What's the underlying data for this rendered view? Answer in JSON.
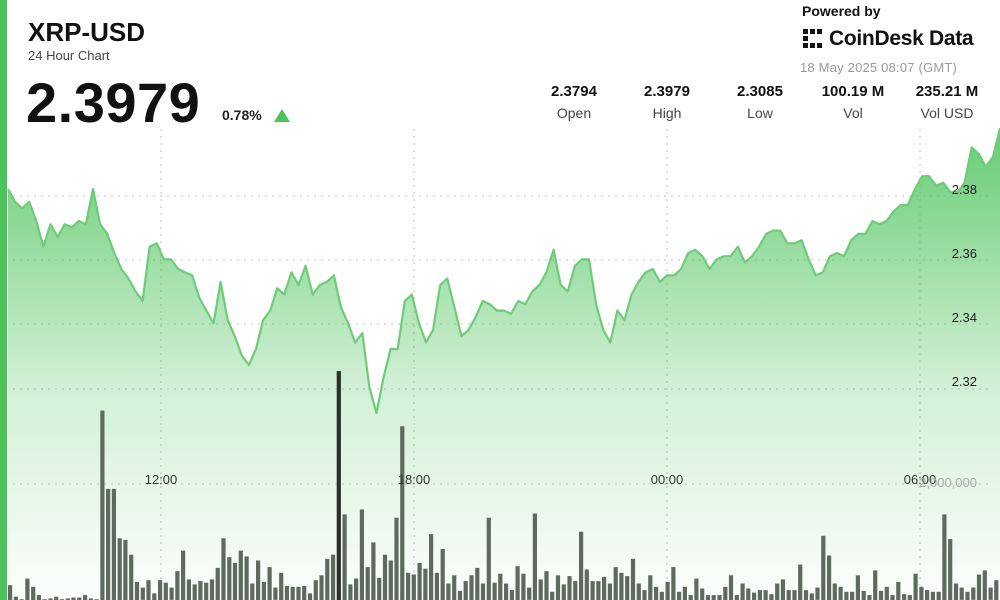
{
  "header": {
    "symbol": "XRP-USD",
    "subtitle": "24 Hour Chart",
    "price": "2.3979",
    "change": "0.78%",
    "change_direction": "up",
    "powered_by": "Powered by",
    "brand": "CoinDesk Data",
    "timestamp": "18 May 2025 08:07 (GMT)"
  },
  "stats": [
    {
      "label": "Open",
      "value": "2.3794"
    },
    {
      "label": "High",
      "value": "2.3979"
    },
    {
      "label": "Low",
      "value": "2.3085"
    },
    {
      "label": "Vol",
      "value": "100.19 M"
    },
    {
      "label": "Vol USD",
      "value": "235.21 M"
    }
  ],
  "colors": {
    "price_line": "#6dcc78",
    "area_fill": "#4cc35a",
    "volume_bar": "#5f6a5e",
    "volume_bar_highlight": "#2a2f2a",
    "up_arrow": "#4cc35a",
    "left_edge": "#4cc35a",
    "grid_dots": "#c8c8c8"
  },
  "chart_data": {
    "type": "line",
    "x_tick_labels": [
      "12:00",
      "18:00",
      "00:00",
      "06:00"
    ],
    "y_tick_labels": [
      "2.38",
      "2.36",
      "2.34",
      "2.32"
    ],
    "y_ticks": [
      2.38,
      2.36,
      2.34,
      2.32
    ],
    "ylim": [
      2.305,
      2.4
    ],
    "volume_axis_label": "2,000,000",
    "volume_max": 3000000,
    "grid": true,
    "price": [
      2.38,
      2.376,
      2.374,
      2.376,
      2.37,
      2.362,
      2.369,
      2.365,
      2.369,
      2.368,
      2.37,
      2.369,
      2.38,
      2.369,
      2.366,
      2.36,
      2.355,
      2.352,
      2.348,
      2.345,
      2.362,
      2.363,
      2.358,
      2.358,
      2.355,
      2.354,
      2.353,
      2.346,
      2.342,
      2.338,
      2.351,
      2.339,
      2.334,
      2.328,
      2.325,
      2.33,
      2.339,
      2.342,
      2.349,
      2.347,
      2.354,
      2.35,
      2.356,
      2.347,
      2.35,
      2.351,
      2.353,
      2.343,
      2.338,
      2.332,
      2.335,
      2.318,
      2.31,
      2.321,
      2.33,
      2.33,
      2.345,
      2.347,
      2.338,
      2.332,
      2.336,
      2.35,
      2.352,
      2.343,
      2.334,
      2.336,
      2.34,
      2.345,
      2.344,
      2.342,
      2.342,
      2.341,
      2.345,
      2.344,
      2.348,
      2.35,
      2.354,
      2.361,
      2.35,
      2.348,
      2.356,
      2.358,
      2.358,
      2.344,
      2.336,
      2.332,
      2.342,
      2.339,
      2.347,
      2.351,
      2.354,
      2.355,
      2.351,
      2.353,
      2.353,
      2.355,
      2.36,
      2.361,
      2.359,
      2.355,
      2.358,
      2.359,
      2.359,
      2.362,
      2.357,
      2.359,
      2.362,
      2.366,
      2.367,
      2.367,
      2.363,
      2.363,
      2.364,
      2.358,
      2.353,
      2.354,
      2.359,
      2.36,
      2.359,
      2.364,
      2.366,
      2.366,
      2.37,
      2.369,
      2.37,
      2.373,
      2.375,
      2.375,
      2.38,
      2.384,
      2.384,
      2.381,
      2.382,
      2.379,
      2.379,
      2.382,
      2.393,
      2.391,
      2.387,
      2.39,
      2.399
    ],
    "volume": [
      180000,
      40000,
      10000,
      260000,
      160000,
      60000,
      10000,
      20000,
      40000,
      10000,
      20000,
      30000,
      30000,
      60000,
      20000,
      10000,
      2300000,
      1350000,
      1350000,
      750000,
      730000,
      550000,
      220000,
      150000,
      240000,
      80000,
      240000,
      210000,
      150000,
      350000,
      600000,
      250000,
      190000,
      230000,
      210000,
      250000,
      390000,
      750000,
      520000,
      450000,
      600000,
      530000,
      200000,
      480000,
      220000,
      400000,
      150000,
      330000,
      170000,
      160000,
      160000,
      170000,
      80000,
      240000,
      300000,
      500000,
      550000,
      2780000,
      1040000,
      190000,
      260000,
      1100000,
      400000,
      700000,
      270000,
      550000,
      480000,
      1000000,
      2110000,
      330000,
      310000,
      450000,
      380000,
      800000,
      330000,
      620000,
      200000,
      300000,
      110000,
      230000,
      300000,
      390000,
      200000,
      1000000,
      210000,
      320000,
      200000,
      120000,
      410000,
      320000,
      150000,
      1050000,
      250000,
      350000,
      100000,
      300000,
      190000,
      290000,
      230000,
      830000,
      370000,
      230000,
      230000,
      280000,
      200000,
      400000,
      330000,
      290000,
      500000,
      200000,
      120000,
      300000,
      160000,
      100000,
      220000,
      400000,
      100000,
      160000,
      60000,
      260000,
      140000,
      60000,
      60000,
      60000,
      160000,
      300000,
      60000,
      200000,
      140000,
      90000,
      120000,
      120000,
      70000,
      200000,
      250000,
      120000,
      120000,
      430000,
      120000,
      80000,
      150000,
      780000,
      540000,
      200000,
      160000,
      100000,
      100000,
      300000,
      110000,
      60000,
      360000,
      110000,
      160000,
      60000,
      220000,
      70000,
      60000,
      320000,
      160000,
      120000,
      100000,
      100000,
      1040000,
      740000,
      200000,
      150000,
      100000,
      150000,
      310000,
      360000,
      150000,
      240000
    ]
  }
}
